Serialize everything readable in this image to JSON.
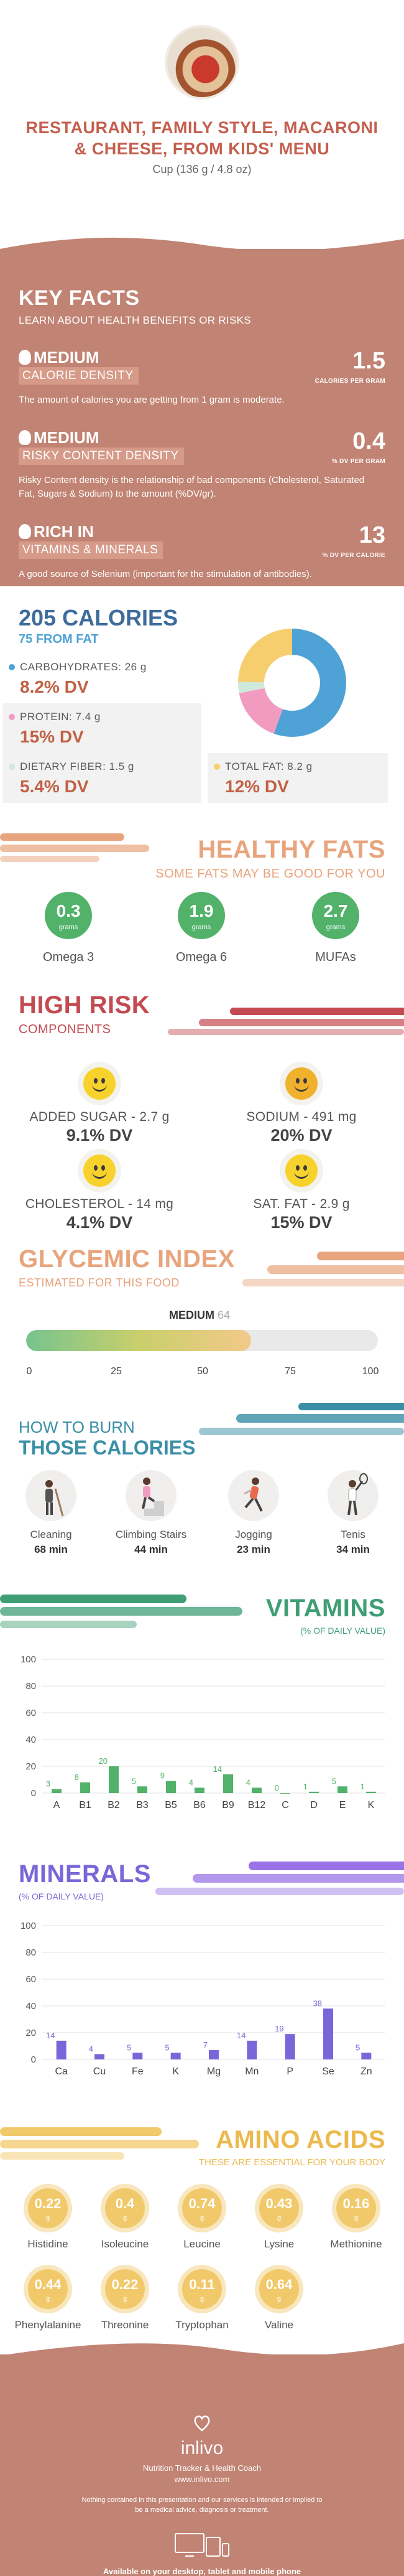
{
  "header": {
    "title": "RESTAURANT, FAMILY STYLE, MACARONI & CHEESE, FROM KIDS' MENU",
    "serving": "Cup (136 g / 4.8 oz)"
  },
  "key_facts": {
    "title": "KEY FACTS",
    "subtitle": "LEARN ABOUT HEALTH BENEFITS OR RISKS",
    "items": [
      {
        "level": "MEDIUM",
        "label": "CALORIE DENSITY",
        "value": "1.5",
        "unit": "CALORIES PER GRAM",
        "desc": "The amount of calories you are getting from 1 gram is moderate."
      },
      {
        "level": "MEDIUM",
        "label": "RISKY CONTENT DENSITY",
        "value": "0.4",
        "unit": "% DV PER GRAM",
        "desc": "Risky Content density is the relationship of bad components (Cholesterol, Saturated Fat, Sugars & Sodium) to the amount (%DV/gr)."
      },
      {
        "level": "RICH IN",
        "label": "VITAMINS & MINERALS",
        "value": "13",
        "unit": "% DV PER CALORIE",
        "desc": "A good source of Selenium (important for the stimulation of antibodies)."
      }
    ]
  },
  "calories": {
    "title": "205 CALORIES",
    "subtitle": "75 FROM FAT",
    "macros": [
      {
        "label": "CARBOHYDRATES: 26 g",
        "dv": "8.2% DV",
        "color": "#4ea2d6"
      },
      {
        "label": "PROTEIN: 7.4 g",
        "dv": "15% DV",
        "color": "#f29bc1"
      },
      {
        "label": "DIETARY FIBER: 1.5 g",
        "dv": "5.4% DV",
        "color": "#cfe9da"
      },
      {
        "label": "TOTAL FAT: 8.2 g",
        "dv": "12% DV",
        "color": "#f6ce6e"
      }
    ]
  },
  "healthy_fats": {
    "title": "HEALTHY FATS",
    "subtitle": "SOME FATS MAY BE GOOD FOR YOU",
    "unit": "grams",
    "items": [
      {
        "value": "0.3",
        "name": "Omega 3"
      },
      {
        "value": "1.9",
        "name": "Omega 6"
      },
      {
        "value": "2.7",
        "name": "MUFAs"
      }
    ]
  },
  "high_risk": {
    "title": "HIGH RISK",
    "subtitle": "COMPONENTS",
    "items": [
      {
        "label": "ADDED SUGAR - 2.7 g",
        "dv": "9.1% DV"
      },
      {
        "label": "SODIUM - 491 mg",
        "dv": "20% DV"
      },
      {
        "label": "CHOLESTEROL - 14 mg",
        "dv": "4.1% DV"
      },
      {
        "label": "SAT. FAT - 2.9 g",
        "dv": "15% DV"
      }
    ]
  },
  "glycemic": {
    "title": "GLYCEMIC INDEX",
    "subtitle": "ESTIMATED FOR THIS FOOD",
    "level": "MEDIUM",
    "value": "64",
    "ticks": [
      "0",
      "25",
      "50",
      "75",
      "100"
    ]
  },
  "burn": {
    "title_line1": "HOW TO BURN",
    "title_line2": "THOSE CALORIES",
    "activities": [
      {
        "name": "Cleaning",
        "minutes": "68 min",
        "icon": "cleaning-icon"
      },
      {
        "name": "Climbing Stairs",
        "minutes": "44 min",
        "icon": "stairs-icon"
      },
      {
        "name": "Jogging",
        "minutes": "23 min",
        "icon": "jogging-icon"
      },
      {
        "name": "Tenis",
        "minutes": "34 min",
        "icon": "tennis-icon"
      }
    ]
  },
  "vitamins": {
    "title": "VITAMINS",
    "subtitle": "(% OF DAILY VALUE)"
  },
  "minerals": {
    "title": "MINERALS",
    "subtitle": "(% OF DAILY VALUE)"
  },
  "chart_data": [
    {
      "type": "bar",
      "title": "VITAMINS",
      "subtitle": "(% OF DAILY VALUE)",
      "categories": [
        "A",
        "B1",
        "B2",
        "B3",
        "B5",
        "B6",
        "B9",
        "B12",
        "C",
        "D",
        "E",
        "K"
      ],
      "values": [
        3,
        8,
        20,
        5,
        9,
        4,
        14,
        4,
        0,
        1,
        5,
        1
      ],
      "ylim": [
        0,
        100
      ],
      "yticks": [
        "0",
        "20",
        "40",
        "60",
        "80",
        "100"
      ],
      "color": "#52b26a",
      "grid": true
    },
    {
      "type": "bar",
      "title": "MINERALS",
      "subtitle": "(% OF DAILY VALUE)",
      "categories": [
        "Ca",
        "Cu",
        "Fe",
        "K",
        "Mg",
        "Mn",
        "P",
        "Se",
        "Zn"
      ],
      "values": [
        14,
        4,
        5,
        5,
        7,
        14,
        19,
        38,
        5
      ],
      "ylim": [
        0,
        100
      ],
      "yticks": [
        "0",
        "20",
        "40",
        "60",
        "80",
        "100"
      ],
      "color": "#7b66d9",
      "grid": true
    }
  ],
  "amino": {
    "title": "AMINO ACIDS",
    "subtitle": "THESE ARE ESSENTIAL FOR YOUR BODY",
    "unit": "g",
    "items": [
      {
        "value": "0.22",
        "name": "Histidine"
      },
      {
        "value": "0.4",
        "name": "Isoleucine"
      },
      {
        "value": "0.74",
        "name": "Leucine"
      },
      {
        "value": "0.43",
        "name": "Lysine"
      },
      {
        "value": "0.16",
        "name": "Methionine"
      },
      {
        "value": "0.44",
        "name": "Phenylalanine"
      },
      {
        "value": "0.22",
        "name": "Threonine"
      },
      {
        "value": "0.11",
        "name": "Tryptophan"
      },
      {
        "value": "0.64",
        "name": "Valine"
      }
    ]
  },
  "footer": {
    "brand": "inlivo",
    "tagline": "Nutrition Tracker & Health Coach",
    "url": "www.inlivo.com",
    "disclaimer": "Nothing contained in this presentation and our services is intended or implied to be a medical advice, diagnosis or treatment.",
    "available": "Available on your desktop, tablet and mobile phone"
  }
}
